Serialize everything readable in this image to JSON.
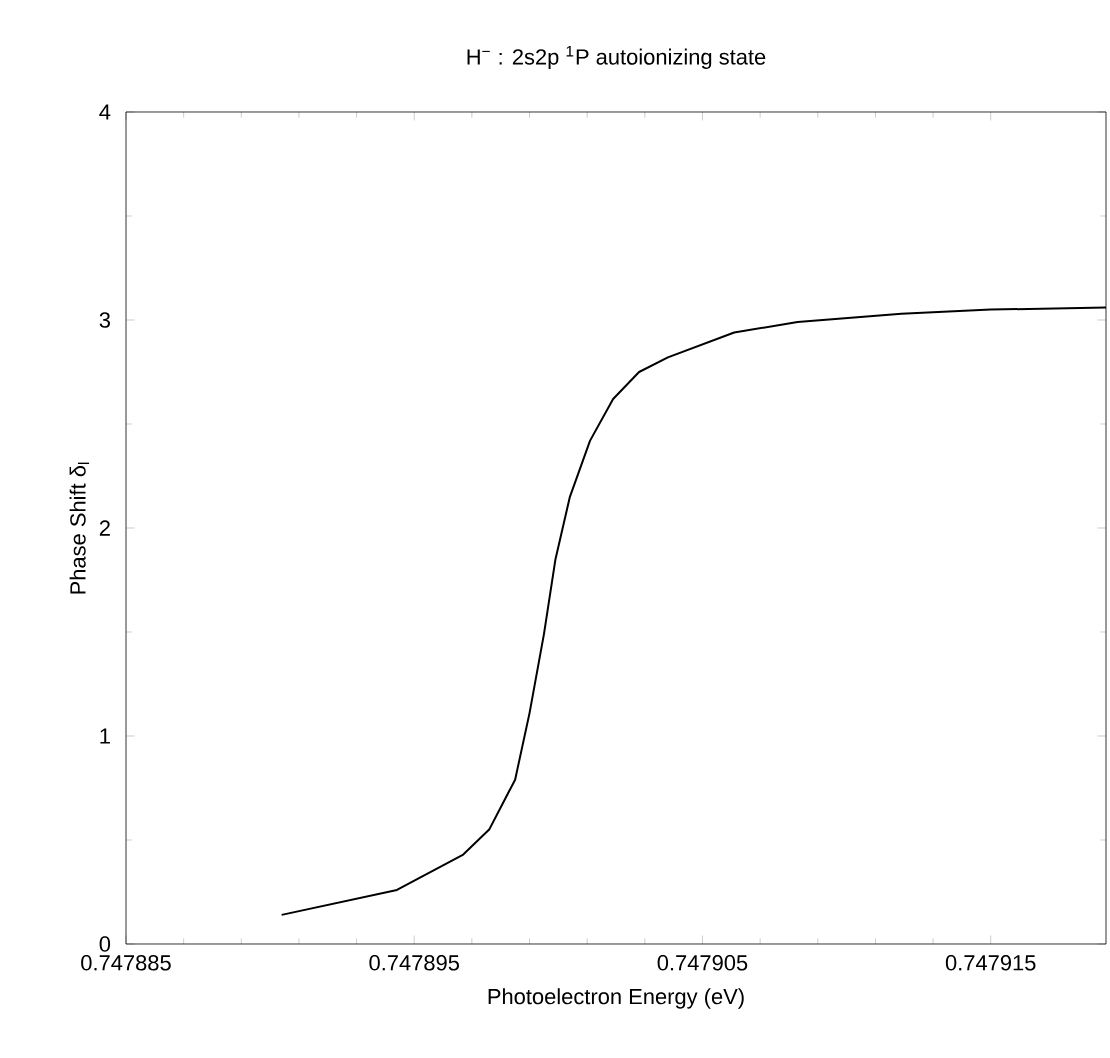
{
  "chart_data": {
    "type": "line",
    "title": "H$^{−}$ :  2s2p $^{1}$P autoionizing state",
    "xlabel": "Photoelectron Energy  (eV)",
    "ylabel": "Phase Shift δ$_{l}$",
    "x": [
      0.7478904,
      0.7478944,
      0.7478967,
      0.7478976,
      0.7478985,
      0.747899,
      0.7478995,
      0.7478999,
      0.7479004,
      0.7479011,
      0.7479019,
      0.7479028,
      0.7479038,
      0.7479061,
      0.7479083,
      0.7479119,
      0.747915,
      0.747919
    ],
    "values": [
      0.14,
      0.26,
      0.43,
      0.55,
      0.79,
      1.11,
      1.49,
      1.85,
      2.15,
      2.42,
      2.62,
      2.75,
      2.82,
      2.94,
      2.99,
      3.03,
      3.05,
      3.06
    ],
    "color": "#000000",
    "xlim": [
      0.747885,
      0.747919
    ],
    "ylim": [
      0,
      4
    ],
    "xticks": [
      {
        "value": 0.747885,
        "label": "0.747885"
      },
      {
        "value": 0.747895,
        "label": "0.747895"
      },
      {
        "value": 0.747905,
        "label": "0.747905"
      },
      {
        "value": 0.747915,
        "label": "0.747915"
      }
    ],
    "yticks": [
      0,
      1,
      2,
      3,
      4
    ],
    "marker": "none",
    "line_style": "solid"
  }
}
